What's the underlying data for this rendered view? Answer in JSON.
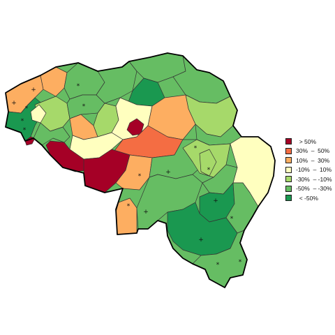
{
  "legend": {
    "items": [
      {
        "label": "  > 50%",
        "color": "#a50026"
      },
      {
        "label": "30%  –  50%",
        "color": "#f46d43"
      },
      {
        "label": "10%  –  30%",
        "color": "#fdae61"
      },
      {
        "label": "-10%  –  10%",
        "color": "#ffffbf"
      },
      {
        "label": "-30%  – -10%",
        "color": "#a6d96a"
      },
      {
        "label": "-50%  – -30%",
        "color": "#66bd63"
      },
      {
        "label": "  < -50%",
        "color": "#1a9850"
      }
    ]
  },
  "markers": {
    "plus": "+",
    "star": "*"
  },
  "colors": {
    "dark_green": "#1a7a3a",
    "outline": "#000000"
  }
}
